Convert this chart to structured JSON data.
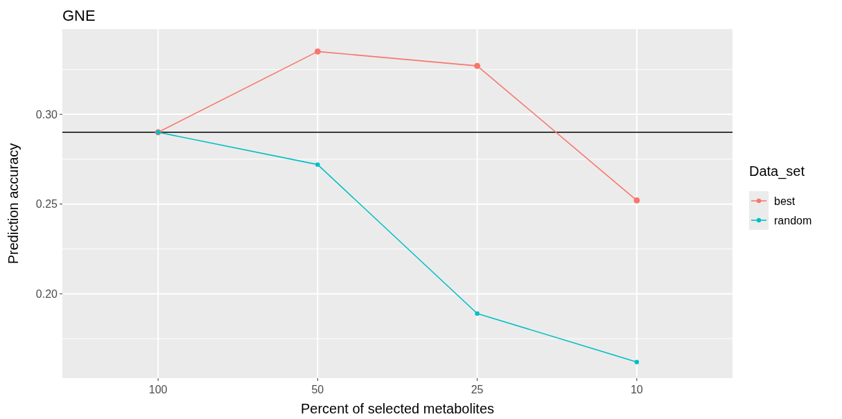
{
  "chart_data": {
    "type": "line",
    "title": "GNE",
    "xlabel": "Percent of selected metabolites",
    "ylabel": "Prediction accuracy",
    "legend_title": "Data_set",
    "categories": [
      "100",
      "50",
      "25",
      "10"
    ],
    "series": [
      {
        "name": "best",
        "color": "#f8766d",
        "values": [
          0.29,
          0.335,
          0.327,
          0.252
        ]
      },
      {
        "name": "random",
        "color": "#00bfc4",
        "values": [
          0.29,
          0.272,
          0.189,
          0.162
        ]
      }
    ],
    "ylim": [
      0.153,
      0.3475
    ],
    "yticks": [
      {
        "value": 0.2,
        "label": "0.20"
      },
      {
        "value": 0.25,
        "label": "0.25"
      },
      {
        "value": 0.3,
        "label": "0.30"
      }
    ],
    "ref_lines": [
      {
        "axis": "y",
        "value": 0.29,
        "color": "#000000"
      }
    ],
    "grid": true,
    "legend": "right",
    "marker": "circle",
    "line_style": "solid"
  }
}
